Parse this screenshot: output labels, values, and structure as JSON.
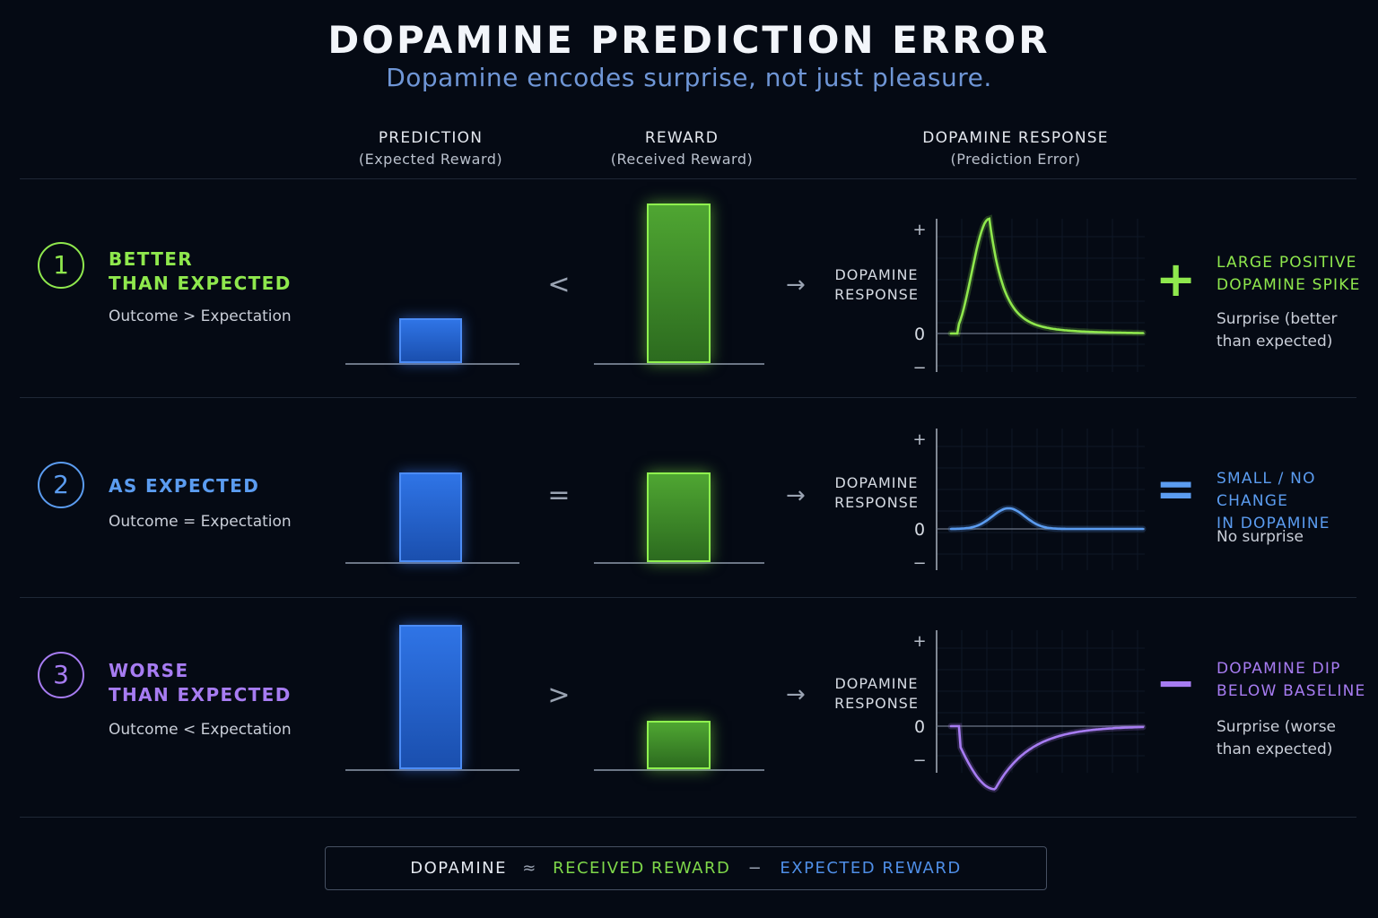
{
  "title": "DOPAMINE PREDICTION ERROR",
  "subtitle": "Dopamine encodes surprise, not just pleasure.",
  "columns": {
    "prediction": {
      "label": "PREDICTION",
      "sub": "(Expected Reward)"
    },
    "reward": {
      "label": "REWARD",
      "sub": "(Received Reward)"
    },
    "response": {
      "label": "DOPAMINE RESPONSE",
      "sub": "(Prediction Error)"
    }
  },
  "colors": {
    "green": "#8fe84d",
    "blue": "#5b9cf0",
    "purple": "#a77cf2"
  },
  "rows": [
    {
      "number": "1",
      "title_line1": "BETTER",
      "title_line2": "THAN EXPECTED",
      "condition": "Outcome > Expectation",
      "prediction_level": 0.28,
      "reward_level": 1.0,
      "operator": "<",
      "arrow": "→",
      "response_label_line1": "DOPAMINE",
      "response_label_line2": "RESPONSE",
      "axis_plus": "+",
      "axis_zero": "0",
      "axis_minus": "−",
      "response_peak": 1.0,
      "sign": "+",
      "result_line1": "LARGE POSITIVE",
      "result_line2": "DOPAMINE SPIKE",
      "note_line1": "Surprise (better",
      "note_line2": "than expected)",
      "accent": "green"
    },
    {
      "number": "2",
      "title_line1": "AS EXPECTED",
      "title_line2": "",
      "condition": "Outcome = Expectation",
      "prediction_level": 0.57,
      "reward_level": 0.57,
      "operator": "=",
      "arrow": "→",
      "response_label_line1": "DOPAMINE",
      "response_label_line2": "RESPONSE",
      "axis_plus": "+",
      "axis_zero": "0",
      "axis_minus": "−",
      "response_peak": 0.18,
      "sign": "=",
      "result_line1": "SMALL / NO CHANGE",
      "result_line2": "IN DOPAMINE",
      "note_line1": "No surprise",
      "note_line2": "",
      "accent": "blue"
    },
    {
      "number": "3",
      "title_line1": "WORSE",
      "title_line2": "THAN EXPECTED",
      "condition": "Outcome < Expectation",
      "prediction_level": 0.92,
      "reward_level": 0.31,
      "operator": ">",
      "arrow": "→",
      "response_label_line1": "DOPAMINE",
      "response_label_line2": "RESPONSE",
      "axis_plus": "+",
      "axis_zero": "0",
      "axis_minus": "−",
      "response_peak": -0.55,
      "sign": "−",
      "result_line1": "DOPAMINE DIP",
      "result_line2": "BELOW BASELINE",
      "note_line1": "Surprise (worse",
      "note_line2": "than expected)",
      "accent": "purple"
    }
  ],
  "formula": {
    "lhs": "DOPAMINE",
    "approx": "≈",
    "term1": "RECEIVED REWARD",
    "minus": "−",
    "term2": "EXPECTED REWARD"
  }
}
